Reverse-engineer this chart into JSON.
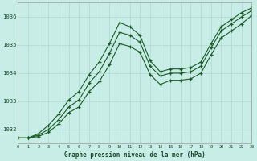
{
  "xlabel": "Graphe pression niveau de la mer (hPa)",
  "bg_color": "#c8ece6",
  "grid_color": "#b0d8d0",
  "line_color": "#1a5c28",
  "line1": [
    1031.7,
    1031.7,
    1031.85,
    1032.15,
    1032.55,
    1033.05,
    1033.35,
    1033.95,
    1034.4,
    1035.05,
    1035.8,
    1035.65,
    1035.35,
    1034.45,
    1034.05,
    1034.15,
    1034.15,
    1034.2,
    1034.4,
    1035.05,
    1035.65,
    1035.9,
    1036.15,
    1036.32
  ],
  "line2": [
    1031.7,
    1031.7,
    1031.8,
    1032.0,
    1032.35,
    1032.8,
    1033.05,
    1033.65,
    1034.05,
    1034.7,
    1035.45,
    1035.35,
    1035.1,
    1034.25,
    1033.9,
    1034.0,
    1034.0,
    1034.05,
    1034.25,
    1034.9,
    1035.5,
    1035.75,
    1036.0,
    1036.22
  ],
  "line3": [
    1031.7,
    1031.7,
    1031.75,
    1031.9,
    1032.2,
    1032.6,
    1032.8,
    1033.35,
    1033.7,
    1034.3,
    1035.05,
    1034.95,
    1034.75,
    1033.95,
    1033.6,
    1033.75,
    1033.75,
    1033.8,
    1034.0,
    1034.65,
    1035.25,
    1035.5,
    1035.75,
    1036.05
  ],
  "ylim": [
    1031.5,
    1036.5
  ],
  "xlim_min": 0,
  "xlim_max": 23,
  "yticks": [
    1032,
    1033,
    1034,
    1035,
    1036
  ],
  "ytick_labels": [
    "1032",
    "1033",
    "1034",
    "1035",
    "1036"
  ]
}
